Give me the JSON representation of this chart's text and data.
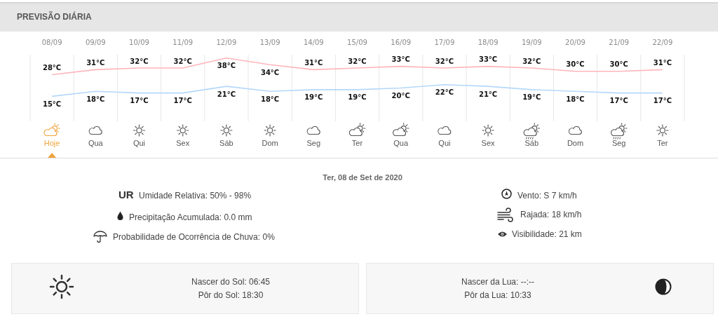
{
  "chart_data": {
    "type": "line",
    "title": "PREVISÃO DIÁRIA",
    "categories": [
      "08/09",
      "09/09",
      "10/09",
      "11/09",
      "12/09",
      "13/09",
      "14/09",
      "15/09",
      "16/09",
      "17/09",
      "18/09",
      "19/09",
      "20/09",
      "21/09",
      "22/09"
    ],
    "series": [
      {
        "color": "#ffb5bb",
        "values": [
          28,
          31,
          32,
          32,
          38,
          34,
          31,
          32,
          33,
          32,
          33,
          32,
          30,
          30,
          31
        ],
        "value_labels": [
          "28°C",
          "31°C",
          "32°C",
          "32°C",
          "38°C",
          "34°C",
          "31°C",
          "32°C",
          "33°C",
          "32°C",
          "33°C",
          "32°C",
          "30°C",
          "30°C",
          "31°C"
        ]
      },
      {
        "color": "#b5d8fa",
        "values": [
          15,
          18,
          17,
          17,
          21,
          18,
          19,
          19,
          20,
          22,
          21,
          19,
          18,
          17,
          17
        ],
        "value_labels": [
          "15°C",
          "18°C",
          "17°C",
          "17°C",
          "21°C",
          "18°C",
          "19°C",
          "19°C",
          "20°C",
          "22°C",
          "21°C",
          "19°C",
          "18°C",
          "17°C",
          "17°C"
        ]
      }
    ],
    "grid": "x",
    "tick_labels": "x",
    "annotations": [
      "Hoje",
      "Qua",
      "Qui",
      "Sex",
      "Sáb",
      "Dom",
      "Seg",
      "Ter",
      "Qua",
      "Qui",
      "Sex",
      "Sáb",
      "Dom",
      "Seg",
      "Ter",
      "Ter, 08 de Set de 2020",
      "UR",
      "Umidade Relativa: 50% - 98%",
      "Precipitação Acumulada: 0.0 mm",
      "Probabilidade de Ocorrência de Chuva: 0%",
      "Vento: S 7 km/h",
      "Rajada: 18 km/h",
      "Visibilidade: 21 km",
      "Nascer do Sol: 06:45",
      "Pôr do Sol: 18:30",
      "Nascer da Lua: --:--",
      "Pôr da Lua: 10:33"
    ]
  }
}
